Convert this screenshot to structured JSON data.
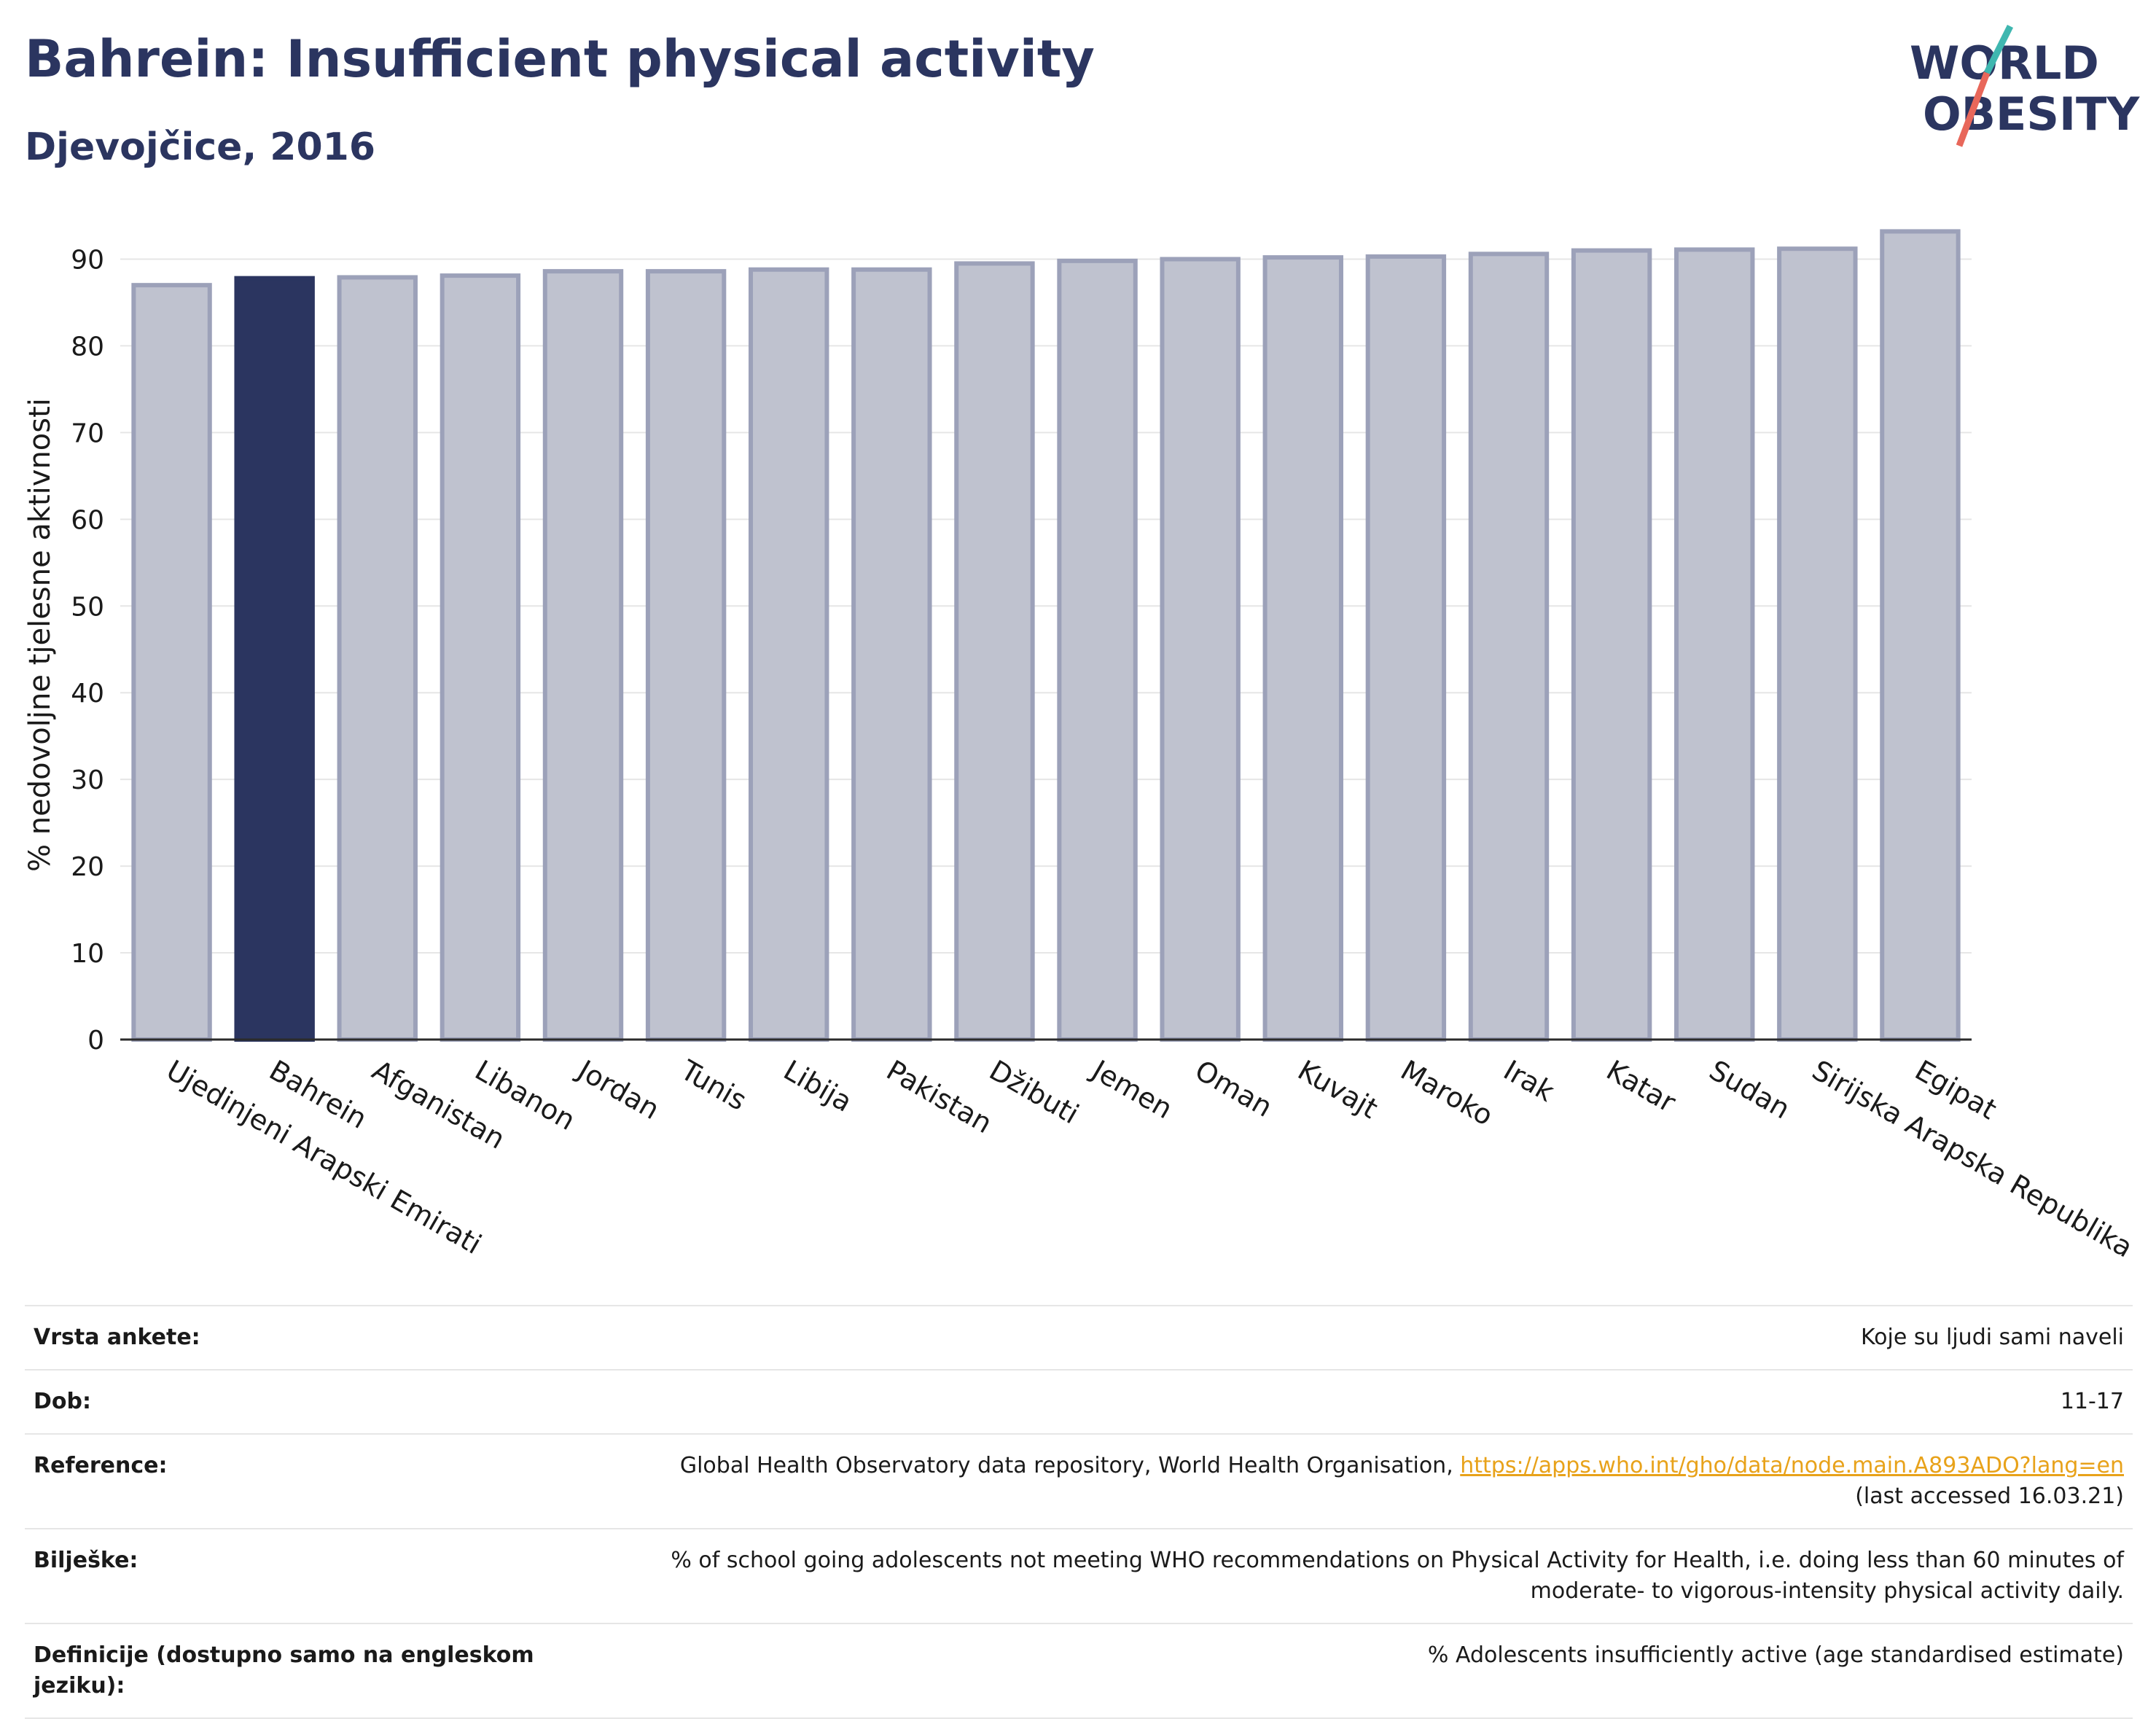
{
  "title": "Bahrein: Insufficient physical activity",
  "subtitle": "Djevojčice, 2016",
  "logo": {
    "line1": "WORLD",
    "line2": "OBESITY",
    "colors": {
      "text": "#2b3560",
      "slash_top": "#3fb7b0",
      "slash_bottom": "#e8675a"
    }
  },
  "chart_data": {
    "type": "bar",
    "categories": [
      "Ujedinjeni Arapski Emirati",
      "Bahrein",
      "Afganistan",
      "Libanon",
      "Jordan",
      "Tunis",
      "Libija",
      "Pakistan",
      "Džibuti",
      "Jemen",
      "Oman",
      "Kuvajt",
      "Maroko",
      "Irak",
      "Katar",
      "Sudan",
      "Sirijska Arapska Republika",
      "Egipat"
    ],
    "values": [
      87.0,
      87.8,
      87.9,
      88.1,
      88.6,
      88.6,
      88.8,
      88.8,
      89.5,
      89.8,
      90.0,
      90.2,
      90.3,
      90.6,
      91.0,
      91.1,
      91.2,
      93.2
    ],
    "highlight": "Bahrein",
    "ylabel": "% nedovoljne tjelesne aktivnosti",
    "xlabel": "",
    "ylim": [
      0,
      95
    ],
    "yticks": [
      0,
      10,
      20,
      30,
      40,
      50,
      60,
      70,
      80,
      90
    ],
    "grid": true,
    "colors": {
      "bar": "#bfc2cf",
      "bar_edge": "#9ca1b9",
      "highlight": "#2b3560",
      "grid": "#e6e6e6",
      "axis": "#2b2b2b"
    }
  },
  "info": {
    "rows": [
      {
        "label": "Vrsta ankete:",
        "value": "Koje su ljudi sami naveli"
      },
      {
        "label": "Dob:",
        "value": "11-17"
      },
      {
        "label": "Reference:",
        "value": "Global Health Observatory data repository, World Health Organisation, ",
        "link": "https://apps.who.int/gho/data/node.main.A893ADO?lang=en",
        "value2": "(last accessed 16.03.21)"
      },
      {
        "label": "Bilješke:",
        "value": "% of school going adolescents not meeting WHO recommendations on Physical Activity for Health, i.e. doing less than 60 minutes of",
        "value2": "moderate- to vigorous-intensity physical activity daily."
      },
      {
        "label": "Definicije (dostupno samo na engleskom jeziku):",
        "value": "% Adolescents insufficiently active (age standardised estimate)"
      }
    ]
  }
}
